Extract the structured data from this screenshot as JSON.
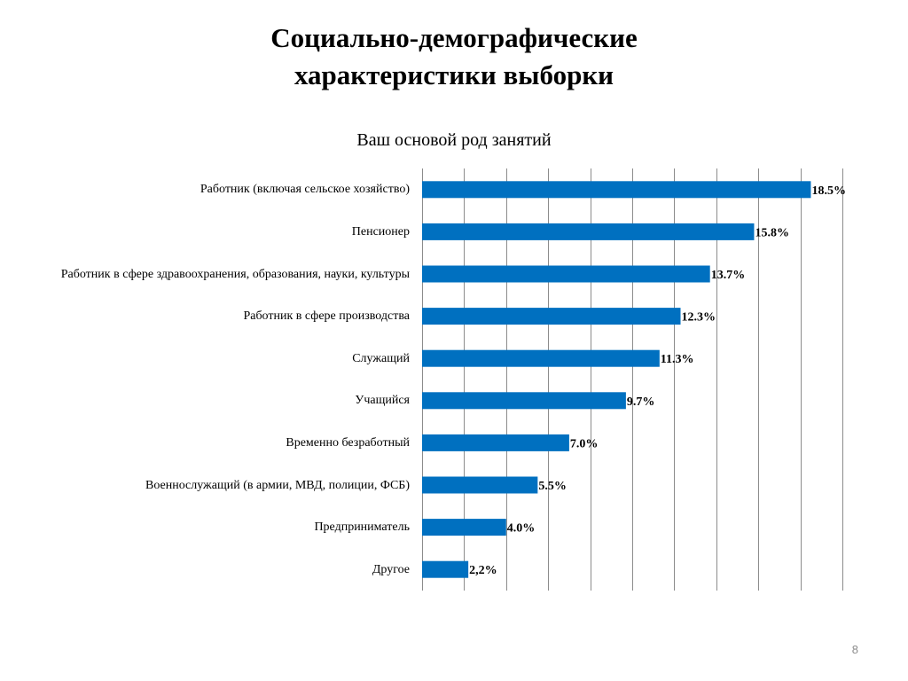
{
  "slide": {
    "title_line1": "Социально-демографические",
    "title_line2": "характеристики выборки",
    "page_number": "8"
  },
  "colors": {
    "bar": "#0070C0",
    "grid": "#8c8c8c",
    "axis": "#8c8c8c"
  },
  "chart_data": {
    "type": "bar",
    "orientation": "horizontal",
    "title": "Ваш основой род занятий",
    "categories": [
      "Работник (включая сельское хозяйство)",
      "Пенсионер",
      "Работник в сфере здравоохранения, образования, науки, культуры",
      "Работник в сфере производства",
      "Служащий",
      "Учащийся",
      "Временно безработный",
      "Военнослужащий (в армии, МВД, полиции, ФСБ)",
      "Предприниматель",
      "Другое"
    ],
    "values": [
      18.5,
      15.8,
      13.7,
      12.3,
      11.3,
      9.7,
      7.0,
      5.5,
      4.0,
      2.2
    ],
    "data_labels": [
      "18.5%",
      "15.8%",
      "13.7%",
      "12.3%",
      "11.3%",
      "9.7%",
      "7.0%",
      "5.5%",
      "4.0%",
      "2,2%"
    ],
    "xlim": [
      0,
      20
    ],
    "grid_step": 2,
    "grid": true,
    "legend": "none"
  }
}
